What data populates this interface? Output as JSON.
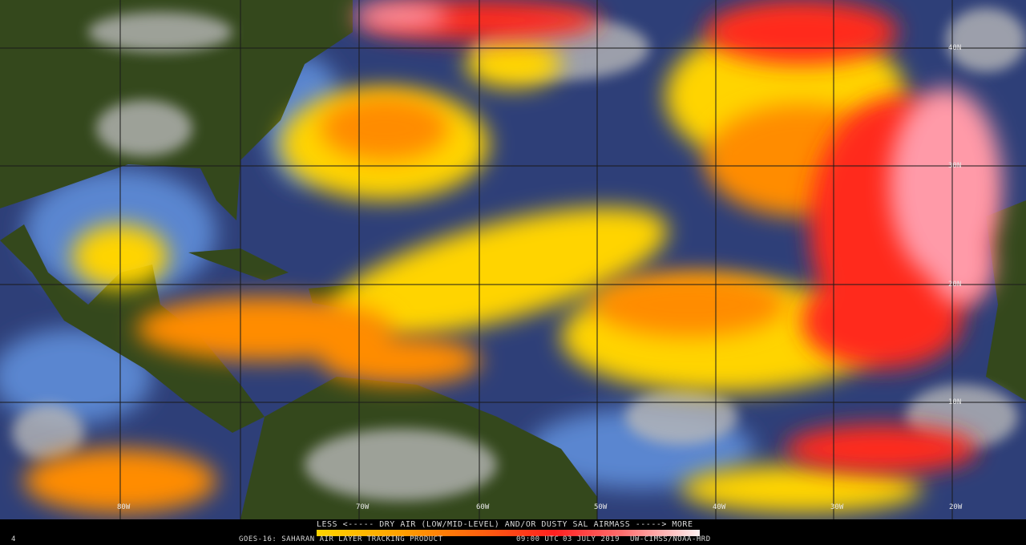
{
  "map": {
    "latitude_labels": [
      "40N",
      "30N",
      "20N",
      "10N"
    ],
    "longitude_labels": [
      "80W",
      "70W",
      "60W",
      "50W",
      "40W",
      "30W",
      "20W"
    ],
    "colors": {
      "ocean_moist": "#2e3f78",
      "ocean_light": "#5a86d0",
      "land": "#34481c",
      "cloud": "#b8b8b8",
      "dry_yellow": "#ffd400",
      "dry_orange": "#ff8c00",
      "dry_red": "#ff2a1a",
      "dry_pink": "#ff9aa8"
    }
  },
  "footer": {
    "frame_number": "4",
    "legend_text": "LESS <----- DRY AIR (LOW/MID-LEVEL) AND/OR DUSTY SAL AIRMASS -----> MORE",
    "product": "GOES-16: SAHARAN AIR LAYER TRACKING PRODUCT",
    "time": "09:00 UTC",
    "date": "03 JULY 2019",
    "credit": "UW-CIMSS/NOAA-HRD"
  }
}
